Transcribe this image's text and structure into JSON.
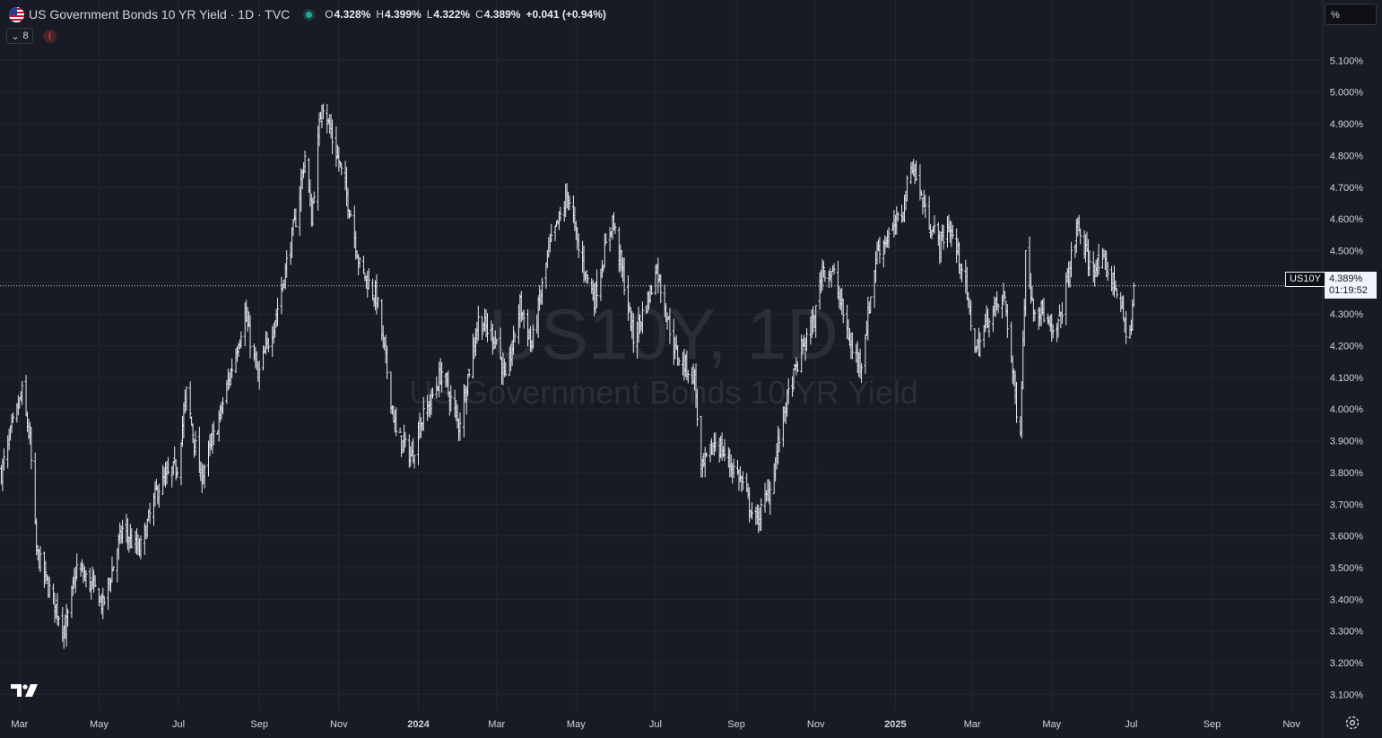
{
  "legend": {
    "title": "US Government Bonds 10 YR Yield · 1D · TVC",
    "open_key": "O",
    "open": "4.328%",
    "high_key": "H",
    "high": "4.399%",
    "low_key": "L",
    "low": "4.322%",
    "close_key": "C",
    "close": "4.389%",
    "change": "+0.041 (+0.94%)",
    "indicator_count": "8",
    "indicator_chevron": "⌄",
    "alert_glyph": "!"
  },
  "price_scale": {
    "unit": "%"
  },
  "watermark": {
    "symbol": "US10Y, 1D",
    "name": "US Government Bonds 10 YR Yield"
  },
  "last_price": {
    "symbol": "US10Y",
    "value": "4.389%",
    "countdown": "01:19:52"
  },
  "icons": {
    "logo": "tradingview-logo-icon",
    "settings": "gear-icon",
    "flag": "us-flag-icon"
  },
  "colors": {
    "background": "#181b25",
    "bars": "#e8e9ee",
    "grid": "#242733",
    "live_dot": "#26a69a",
    "alert": "#f23645"
  },
  "chart_data": {
    "type": "ohlc-bar",
    "title": "US Government Bonds 10 YR Yield · 1D · TVC",
    "timeframe": "1D",
    "ylim": [
      3.07,
      5.2
    ],
    "y_ticks": [
      "3.100%",
      "3.200%",
      "3.300%",
      "3.400%",
      "3.500%",
      "3.600%",
      "3.700%",
      "3.800%",
      "3.900%",
      "4.000%",
      "4.100%",
      "4.200%",
      "4.300%",
      "4.400%",
      "4.500%",
      "4.600%",
      "4.700%",
      "4.800%",
      "4.900%",
      "5.000%",
      "5.100%"
    ],
    "y_tick_values": [
      3.1,
      3.2,
      3.3,
      3.4,
      3.5,
      3.6,
      3.7,
      3.8,
      3.9,
      4.0,
      4.1,
      4.2,
      4.3,
      4.4,
      4.5,
      4.6,
      4.7,
      4.8,
      4.9,
      5.0,
      5.1
    ],
    "x_ticks": [
      "Mar",
      "May",
      "Jul",
      "Sep",
      "Nov",
      "2024",
      "Mar",
      "May",
      "Jul",
      "Sep",
      "Nov",
      "2025",
      "Mar",
      "May",
      "Jul",
      "Sep",
      "Nov"
    ],
    "x_tick_dates": [
      "2023-03-01",
      "2023-05-01",
      "2023-07-01",
      "2023-09-01",
      "2023-11-01",
      "2024-01-01",
      "2024-03-01",
      "2024-05-01",
      "2024-07-01",
      "2024-09-01",
      "2024-11-01",
      "2025-01-01",
      "2025-03-01",
      "2025-05-01",
      "2025-07-01",
      "2025-09-01",
      "2025-11-01"
    ],
    "x_range": [
      "2023-02-14",
      "2025-11-25"
    ],
    "last_bar": {
      "date": "2025-07-03",
      "open": 4.328,
      "high": 4.399,
      "low": 4.322,
      "close": 4.389
    },
    "close_path": [
      [
        "2023-02-15",
        3.8
      ],
      [
        "2023-02-24",
        3.95
      ],
      [
        "2023-03-03",
        4.05
      ],
      [
        "2023-03-09",
        3.9
      ],
      [
        "2023-03-14",
        3.55
      ],
      [
        "2023-03-22",
        3.45
      ],
      [
        "2023-04-05",
        3.3
      ],
      [
        "2023-04-14",
        3.5
      ],
      [
        "2023-04-28",
        3.43
      ],
      [
        "2023-05-04",
        3.38
      ],
      [
        "2023-05-19",
        3.62
      ],
      [
        "2023-06-01",
        3.55
      ],
      [
        "2023-06-15",
        3.75
      ],
      [
        "2023-06-30",
        3.82
      ],
      [
        "2023-07-07",
        4.05
      ],
      [
        "2023-07-18",
        3.78
      ],
      [
        "2023-07-31",
        3.95
      ],
      [
        "2023-08-21",
        4.3
      ],
      [
        "2023-08-31",
        4.1
      ],
      [
        "2023-09-14",
        4.3
      ],
      [
        "2023-09-29",
        4.6
      ],
      [
        "2023-10-06",
        4.8
      ],
      [
        "2023-10-11",
        4.6
      ],
      [
        "2023-10-19",
        4.98
      ],
      [
        "2023-10-27",
        4.85
      ],
      [
        "2023-11-01",
        4.78
      ],
      [
        "2023-11-10",
        4.62
      ],
      [
        "2023-11-17",
        4.45
      ],
      [
        "2023-11-30",
        4.35
      ],
      [
        "2023-12-07",
        4.15
      ],
      [
        "2023-12-15",
        3.92
      ],
      [
        "2023-12-27",
        3.85
      ],
      [
        "2024-01-02",
        3.95
      ],
      [
        "2024-01-10",
        4.02
      ],
      [
        "2024-01-19",
        4.12
      ],
      [
        "2024-02-01",
        3.95
      ],
      [
        "2024-02-16",
        4.28
      ],
      [
        "2024-03-01",
        4.22
      ],
      [
        "2024-03-08",
        4.08
      ],
      [
        "2024-03-19",
        4.33
      ],
      [
        "2024-03-28",
        4.2
      ],
      [
        "2024-04-10",
        4.5
      ],
      [
        "2024-04-25",
        4.68
      ],
      [
        "2024-05-03",
        4.5
      ],
      [
        "2024-05-15",
        4.35
      ],
      [
        "2024-05-29",
        4.6
      ],
      [
        "2024-06-07",
        4.4
      ],
      [
        "2024-06-14",
        4.22
      ],
      [
        "2024-06-28",
        4.38
      ],
      [
        "2024-07-01",
        4.46
      ],
      [
        "2024-07-16",
        4.18
      ],
      [
        "2024-07-31",
        4.1
      ],
      [
        "2024-08-05",
        3.8
      ],
      [
        "2024-08-16",
        3.9
      ],
      [
        "2024-09-04",
        3.78
      ],
      [
        "2024-09-16",
        3.64
      ],
      [
        "2024-09-27",
        3.75
      ],
      [
        "2024-10-08",
        4.0
      ],
      [
        "2024-10-22",
        4.2
      ],
      [
        "2024-10-31",
        4.28
      ],
      [
        "2024-11-06",
        4.45
      ],
      [
        "2024-11-15",
        4.42
      ],
      [
        "2024-11-29",
        4.18
      ],
      [
        "2024-12-06",
        4.15
      ],
      [
        "2024-12-18",
        4.5
      ],
      [
        "2024-12-31",
        4.57
      ],
      [
        "2025-01-06",
        4.62
      ],
      [
        "2025-01-14",
        4.78
      ],
      [
        "2025-01-24",
        4.62
      ],
      [
        "2025-02-04",
        4.52
      ],
      [
        "2025-02-11",
        4.58
      ],
      [
        "2025-02-21",
        4.45
      ],
      [
        "2025-03-04",
        4.18
      ],
      [
        "2025-03-14",
        4.3
      ],
      [
        "2025-03-26",
        4.35
      ],
      [
        "2025-04-04",
        4.0
      ],
      [
        "2025-04-07",
        3.95
      ],
      [
        "2025-04-11",
        4.48
      ],
      [
        "2025-04-17",
        4.33
      ],
      [
        "2025-04-25",
        4.3
      ],
      [
        "2025-05-02",
        4.22
      ],
      [
        "2025-05-07",
        4.28
      ],
      [
        "2025-05-15",
        4.45
      ],
      [
        "2025-05-21",
        4.58
      ],
      [
        "2025-05-30",
        4.45
      ],
      [
        "2025-06-11",
        4.45
      ],
      [
        "2025-06-20",
        4.38
      ],
      [
        "2025-06-27",
        4.25
      ],
      [
        "2025-07-01",
        4.25
      ],
      [
        "2025-07-03",
        4.389
      ]
    ]
  }
}
